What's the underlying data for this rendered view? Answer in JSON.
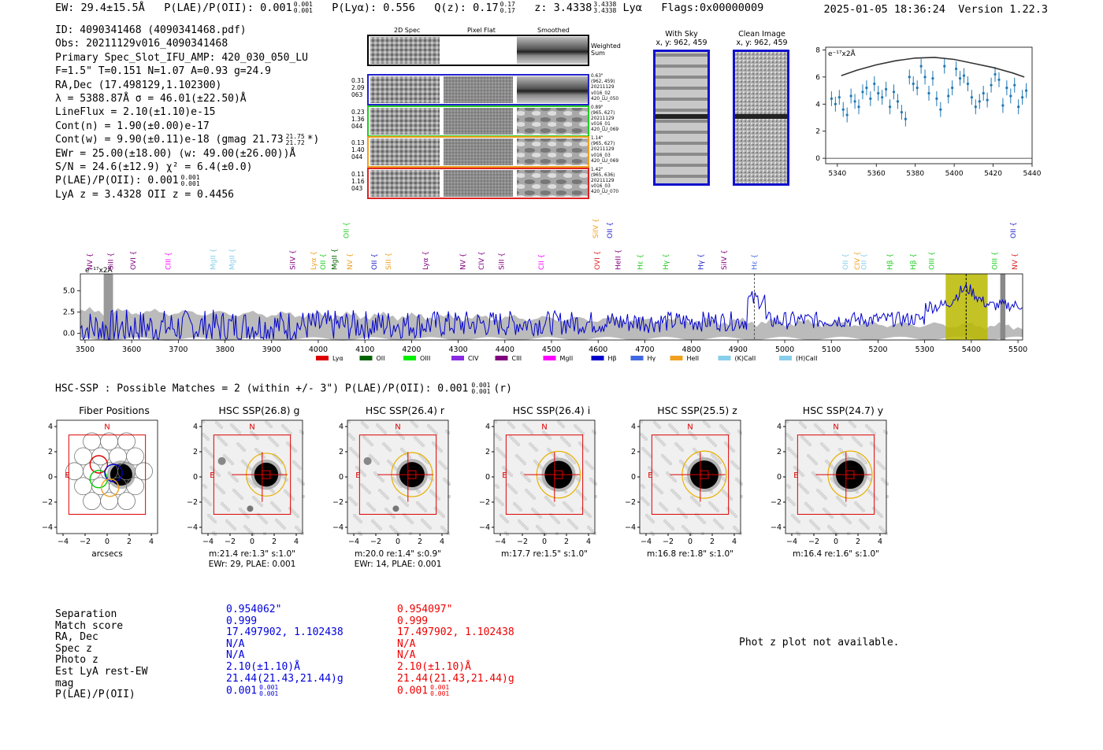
{
  "header": {
    "ew": "EW: 29.4±15.5Å",
    "plae_label": "P(LAE)/P(OII): 0.001",
    "plae_sup": "0.001",
    "plae_sub": "0.001",
    "plya": "P(Lyα): 0.556",
    "qz_label": "Q(z): 0.17",
    "qz_sup": "0.17",
    "qz_sub": "0.17",
    "z_label": "z: 3.4338",
    "z_sup": "3.4338",
    "z_sub": "3.4338",
    "z_line": "Lyα",
    "flags": "Flags:0x00000009",
    "datetime": "2025-01-05 18:36:24",
    "version": "Version 1.22.3"
  },
  "info": {
    "id": "ID: 4090341468 (4090341468.pdf)",
    "obs": "Obs: 20211129v016_4090341468",
    "primary": "Primary Spec_Slot_IFU_AMP: 420_030_050_LU",
    "fiber": "F=1.5\"  T=0.151  N=1.07  A=0.93  g=24.9",
    "radec": "RA,Dec (17.498129,1.102300)",
    "lambda": "λ = 5388.87Å  σ = 46.01(±22.50)Å",
    "lineflux": "LineFlux = 2.10(±1.10)e-15",
    "contn": "Cont(n) = 1.90(±0.00)e-17",
    "contw": "Cont(w) = 9.90(±0.11)e-18 (gmag 21.73",
    "contw_sup": "21.75",
    "contw_sub": "21.72",
    "contw_end": "*)",
    "ewr": "EWr = 25.00(±18.00) (w: 49.00(±26.00))Å",
    "sn": "S/N = 24.6(±12.9)  χ² = 6.4(±0.0)",
    "plae": "P(LAE)/P(OII): 0.001",
    "plae_sup": "0.001",
    "plae_sub": "0.001",
    "lya_z": "LyA z = 3.4328  OII z = 0.4456"
  },
  "cutouts": {
    "col_headers": [
      "2D Spec",
      "Pixel Flat",
      "Smoothed"
    ],
    "weighted": "Weighted Sum",
    "rows": [
      {
        "left": [
          "0.31",
          "2.09",
          "063"
        ],
        "right": [
          "0.63\"",
          "(962, 459)",
          "20211129",
          "v016_02",
          "420_LU_050"
        ],
        "color": "#2222cc"
      },
      {
        "left": [
          "0.23",
          "1.36",
          "044"
        ],
        "right": [
          "0.89\"",
          "(965, 627)",
          "20211129",
          "v016_01",
          "420_LU_069"
        ],
        "color": "#22cc22"
      },
      {
        "left": [
          "0.13",
          "1.40",
          "044"
        ],
        "right": [
          "1.14\"",
          "(965, 627)",
          "20211129",
          "v016_03",
          "420_LU_069"
        ],
        "color": "#f0a020"
      },
      {
        "left": [
          "0.11",
          "1.16",
          "043"
        ],
        "right": [
          "1.42\"",
          "(965, 636)",
          "20211129",
          "v016_03",
          "420_LU_070"
        ],
        "color": "#dd2222"
      }
    ],
    "with_sky_title": "With Sky",
    "with_sky_xy": "x, y: 962, 459",
    "clean_title": "Clean Image",
    "clean_xy": "x, y: 962, 459"
  },
  "chart_data": [
    {
      "type": "line",
      "name": "line-fit-zoom",
      "units_label": "e⁻¹⁷x2Å",
      "xlim": [
        5334,
        5440
      ],
      "ylim": [
        -0.4,
        8.2
      ],
      "xticks": [
        5340,
        5360,
        5380,
        5400,
        5420,
        5440
      ],
      "yticks": [
        0,
        2,
        4,
        6,
        8
      ],
      "data_x": [
        5337,
        5339,
        5341,
        5343,
        5345,
        5347,
        5349,
        5351,
        5353,
        5355,
        5357,
        5359,
        5361,
        5363,
        5365,
        5367,
        5369,
        5371,
        5373,
        5375,
        5377,
        5379,
        5381,
        5383,
        5385,
        5387,
        5389,
        5391,
        5393,
        5395,
        5397,
        5399,
        5401,
        5403,
        5405,
        5407,
        5409,
        5411,
        5413,
        5415,
        5417,
        5419,
        5421,
        5423,
        5425,
        5427,
        5429,
        5431,
        5433,
        5435,
        5437
      ],
      "data_y": [
        4.4,
        4.0,
        4.5,
        3.6,
        3.2,
        4.6,
        4.2,
        3.8,
        4.9,
        5.2,
        4.4,
        5.5,
        4.8,
        4.5,
        5.1,
        3.8,
        4.9,
        4.2,
        3.4,
        2.9,
        6.0,
        5.5,
        5.2,
        6.8,
        6.0,
        4.8,
        5.9,
        4.4,
        3.6,
        6.8,
        4.6,
        5.2,
        6.6,
        5.9,
        6.1,
        5.5,
        4.5,
        3.8,
        4.2,
        4.8,
        4.3,
        5.4,
        6.2,
        5.8,
        3.9,
        5.2,
        4.6,
        5.4,
        3.8,
        4.5,
        5.0
      ],
      "fit_x": [
        5342,
        5350,
        5360,
        5370,
        5380,
        5390,
        5400,
        5410,
        5420,
        5430,
        5436
      ],
      "fit_y": [
        6.1,
        6.5,
        6.9,
        7.2,
        7.4,
        7.45,
        7.3,
        7.0,
        6.7,
        6.3,
        6.0
      ]
    },
    {
      "type": "line",
      "name": "full-spectrum",
      "units_label": "e⁻¹⁷x2Å",
      "xlim": [
        3490,
        5510
      ],
      "ylim": [
        -0.8,
        7.0
      ],
      "xticks": [
        3500,
        3600,
        3700,
        3800,
        3900,
        4000,
        4100,
        4200,
        4300,
        4400,
        4500,
        4600,
        4700,
        4800,
        4900,
        5000,
        5100,
        5200,
        5300,
        5400,
        5500
      ],
      "yticks": [
        0.0,
        2.5,
        5.0
      ],
      "highlight_range": [
        5345,
        5435
      ],
      "marker_lambda": 5388.87,
      "he_lambda": 4935,
      "lines": [
        {
          "label": "NV",
          "x": 3510,
          "color": "#800080"
        },
        {
          "label": "SiII",
          "x": 3555,
          "color": "#800080"
        },
        {
          "label": "OVI",
          "x": 3603,
          "color": "#800080"
        },
        {
          "label": "CIII",
          "x": 3678,
          "color": "#ff00ff"
        },
        {
          "label": "MgII",
          "x": 3775,
          "color": "#87ceeb"
        },
        {
          "label": "MgII",
          "x": 3815,
          "color": "#87ceeb"
        },
        {
          "label": "SiIV",
          "x": 3945,
          "color": "#800080"
        },
        {
          "label": "Lyα",
          "x": 3990,
          "color": "#f0a020"
        },
        {
          "label": "OII",
          "x": 4010,
          "color": "#22cc22"
        },
        {
          "label": "MgII",
          "x": 4035,
          "color": "#006400"
        },
        {
          "label": "NV",
          "x": 4068,
          "color": "#f0a020"
        },
        {
          "label": "OII",
          "x": 4120,
          "color": "#2222cc"
        },
        {
          "label": "SiII",
          "x": 4150,
          "color": "#f0a020"
        },
        {
          "label": "Lyα",
          "x": 4230,
          "color": "#800080"
        },
        {
          "label": "NV",
          "x": 4310,
          "color": "#800080"
        },
        {
          "label": "CIV",
          "x": 4350,
          "color": "#800080"
        },
        {
          "label": "SiII",
          "x": 4393,
          "color": "#800080"
        },
        {
          "label": "CII",
          "x": 4478,
          "color": "#ff00ff"
        },
        {
          "label": "OVI",
          "x": 4598,
          "color": "#dd2222"
        },
        {
          "label": "HeII",
          "x": 4643,
          "color": "#800080"
        },
        {
          "label": "Hε",
          "x": 4690,
          "color": "#22cc22"
        },
        {
          "label": "Hγ",
          "x": 4745,
          "color": "#22cc22"
        },
        {
          "label": "Hγ",
          "x": 4820,
          "color": "#2222cc"
        },
        {
          "label": "SiIV",
          "x": 4870,
          "color": "#800080"
        },
        {
          "label": "Hε",
          "x": 4935,
          "color": "#4169e1"
        },
        {
          "label": "OII",
          "x": 5130,
          "color": "#87ceeb"
        },
        {
          "label": "CIV",
          "x": 5155,
          "color": "#f0a020"
        },
        {
          "label": "OII",
          "x": 5170,
          "color": "#87ceeb"
        },
        {
          "label": "Hβ",
          "x": 5225,
          "color": "#22cc22"
        },
        {
          "label": "Hβ",
          "x": 5275,
          "color": "#22cc22"
        },
        {
          "label": "OIII",
          "x": 5315,
          "color": "#22cc22"
        },
        {
          "label": "OIII",
          "x": 5450,
          "color": "#22cc22"
        },
        {
          "label": "NV",
          "x": 5493,
          "color": "#dd2222"
        }
      ],
      "upper_lines": [
        {
          "label": "OII",
          "x": 4060,
          "color": "#22cc22"
        },
        {
          "label": "SiIV",
          "x": 4595,
          "color": "#f0a020"
        },
        {
          "label": "OII",
          "x": 4625,
          "color": "#2222cc"
        },
        {
          "label": "OII",
          "x": 5490,
          "color": "#2222cc"
        }
      ],
      "legend": [
        {
          "label": "Lyα",
          "color": "#dd0000"
        },
        {
          "label": "OII",
          "color": "#006400"
        },
        {
          "label": "OIII",
          "color": "#00ee00"
        },
        {
          "label": "CIV",
          "color": "#8a2be2"
        },
        {
          "label": "CIII",
          "color": "#800080"
        },
        {
          "label": "MgII",
          "color": "#ff00ff"
        },
        {
          "label": "Hβ",
          "color": "#0000cc"
        },
        {
          "label": "Hγ",
          "color": "#4169e1"
        },
        {
          "label": "HeII",
          "color": "#f0a020"
        },
        {
          "label": "(K)CaII",
          "color": "#87ceeb"
        },
        {
          "label": "(H)CaII",
          "color": "#87ceeb"
        }
      ]
    }
  ],
  "hsc": {
    "heading": "HSC-SSP : Possible Matches = 2 (within +/- 3\")  P(LAE)/P(OII): 0.001",
    "heading_sup": "0.001",
    "heading_sub": "0.001",
    "heading_end": "(r)",
    "panels": [
      {
        "title": "Fiber Positions",
        "cap1": "arcsecs",
        "cap2": ""
      },
      {
        "title": "HSC SSP(26.8) g",
        "cap1": "m:21.4  re:1.3\"  s:1.0\"",
        "cap2": "EWr: 29, PLAE: 0.001"
      },
      {
        "title": "HSC SSP(26.4) r",
        "cap1": "m:20.0  re:1.4\"  s:0.9\"",
        "cap2": "EWr: 14, PLAE: 0.001"
      },
      {
        "title": "HSC SSP(26.4) i",
        "cap1": "m:17.7  re:1.5\"  s:1.0\"",
        "cap2": ""
      },
      {
        "title": "HSC SSP(25.5) z",
        "cap1": "m:16.8  re:1.8\"  s:1.0\"",
        "cap2": ""
      },
      {
        "title": "HSC SSP(24.7) y",
        "cap1": "m:16.4  re:1.6\"  s:1.0\"",
        "cap2": ""
      }
    ],
    "ticks": [
      "-4",
      "-2",
      "0",
      "2",
      "4"
    ],
    "north": "N",
    "east": "E"
  },
  "matches": {
    "labels": [
      "Separation",
      "Match score",
      "RA, Dec",
      "Spec z",
      "Photo z",
      "Est LyA rest-EW",
      "mag",
      "P(LAE)/P(OII)"
    ],
    "blue": [
      "0.954062\"",
      "0.999",
      "17.497902, 1.102438",
      "N/A",
      "N/A",
      "2.10(±1.10)Å",
      "21.44(21.43,21.44)g",
      "0.001"
    ],
    "red": [
      "0.954097\"",
      "0.999",
      "17.497902, 1.102438",
      "N/A",
      "N/A",
      "2.10(±1.10)Å",
      "21.44(21.43,21.44)g",
      "0.001"
    ],
    "plae_sup": "0.001",
    "plae_sub": "0.001",
    "photz_note": "Phot z plot not available."
  },
  "colors": {
    "blue": "#0000dd",
    "red": "#ee0000",
    "spectrum": "#0000cc",
    "band": "#bbbbbb",
    "highlight": "#b8b800"
  }
}
